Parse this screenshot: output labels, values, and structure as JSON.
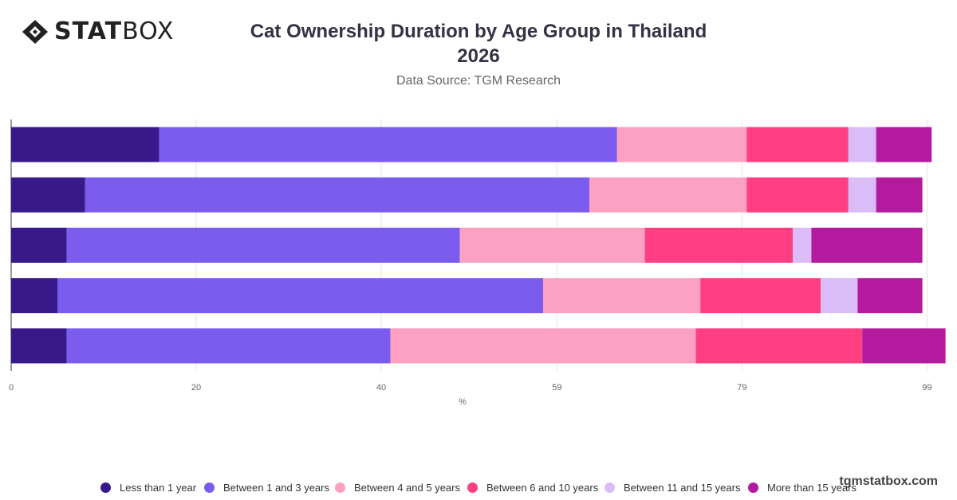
{
  "brand": {
    "logo_bold": "STAT",
    "logo_light": "BOX",
    "watermark": "tgmstatbox.com"
  },
  "header": {
    "title_line1": "Cat Ownership Duration by Age Group in Thailand",
    "title_line2": "2026",
    "subtitle": "Data Source: TGM Research"
  },
  "chart_data": {
    "type": "bar",
    "orientation": "horizontal",
    "stacked": true,
    "title": "Cat Ownership Duration by Age Group in Thailand 2026",
    "subtitle": "Data Source: TGM Research",
    "xlabel": "%",
    "ylabel": "",
    "x_ticks": [
      "0",
      "20",
      "40",
      "59",
      "79",
      "99"
    ],
    "xlim": [
      0,
      100
    ],
    "grid": true,
    "legend_position": "bottom",
    "categories": [
      "",
      "",
      "",
      "",
      ""
    ],
    "series": [
      {
        "name": "Less than 1 year",
        "color": "#37198a",
        "values": [
          16,
          8,
          6,
          5,
          6
        ]
      },
      {
        "name": "Between 1 and 3 years",
        "color": "#7b5cee",
        "values": [
          49.5,
          54.5,
          42.5,
          52.5,
          35
        ]
      },
      {
        "name": "Between 4 and 5 years",
        "color": "#fca1c2",
        "values": [
          14,
          17,
          20,
          17,
          33
        ]
      },
      {
        "name": "Between 6 and 10 years",
        "color": "#ff3f81",
        "values": [
          11,
          11,
          16,
          13,
          18
        ]
      },
      {
        "name": "Between 11 and 15 years",
        "color": "#d9bcf8",
        "values": [
          3,
          3,
          2,
          4,
          0
        ]
      },
      {
        "name": "More than 15 years",
        "color": "#b41a9d",
        "values": [
          6,
          5,
          12,
          7,
          9
        ]
      }
    ]
  }
}
